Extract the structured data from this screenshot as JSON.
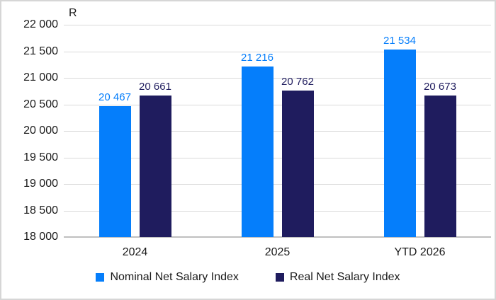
{
  "chart_data": {
    "type": "bar",
    "title": "",
    "axis_title": "R",
    "categories": [
      "2024",
      "2025",
      "YTD 2026"
    ],
    "series": [
      {
        "name": "Nominal Net Salary Index",
        "color": "#057efb",
        "values": [
          20467,
          21216,
          21534
        ],
        "labels": [
          "20 467",
          "21 216",
          "21 534"
        ]
      },
      {
        "name": "Real Net Salary Index",
        "color": "#1f1c5e",
        "values": [
          20661,
          20762,
          20673
        ],
        "labels": [
          "20 661",
          "20 762",
          "20 673"
        ]
      }
    ],
    "y_axis": {
      "min": 18000,
      "max": 22000,
      "step": 500,
      "ticks": [
        {
          "v": 22000,
          "label": "22 000"
        },
        {
          "v": 21500,
          "label": "21 500"
        },
        {
          "v": 21000,
          "label": "21 000"
        },
        {
          "v": 20500,
          "label": "20 500"
        },
        {
          "v": 20000,
          "label": "20 000"
        },
        {
          "v": 19500,
          "label": "19 500"
        },
        {
          "v": 19000,
          "label": "19 000"
        },
        {
          "v": 18500,
          "label": "18 500"
        },
        {
          "v": 18000,
          "label": "18 000"
        }
      ]
    },
    "grid": true,
    "legend_position": "bottom",
    "colors": {
      "gridline": "#d9d9d9",
      "axis_line": "#bfbfbf",
      "text": "#1a1a1a"
    }
  }
}
